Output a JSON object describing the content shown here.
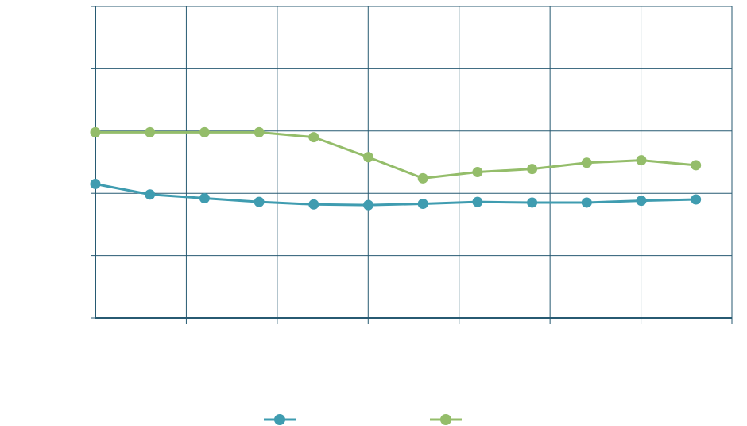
{
  "chart_data": {
    "type": "line",
    "title": "",
    "xlabel": "",
    "ylabel": "",
    "ylim": [
      0,
      5
    ],
    "grid": true,
    "legend_position": "bottom",
    "x_grid_divisions": 7,
    "series": [
      {
        "color": "#3f9cb0",
        "values": [
          2.15,
          1.98,
          1.92,
          1.86,
          1.82,
          1.81,
          1.83,
          1.86,
          1.85,
          1.85,
          1.88,
          1.9
        ]
      },
      {
        "color": "#94bd6a",
        "values": [
          2.98,
          2.98,
          2.98,
          2.98,
          2.9,
          2.58,
          2.24,
          2.34,
          2.39,
          2.49,
          2.53,
          2.45
        ]
      }
    ],
    "axis_color": "#275a72",
    "grid_color": "#275a72"
  }
}
